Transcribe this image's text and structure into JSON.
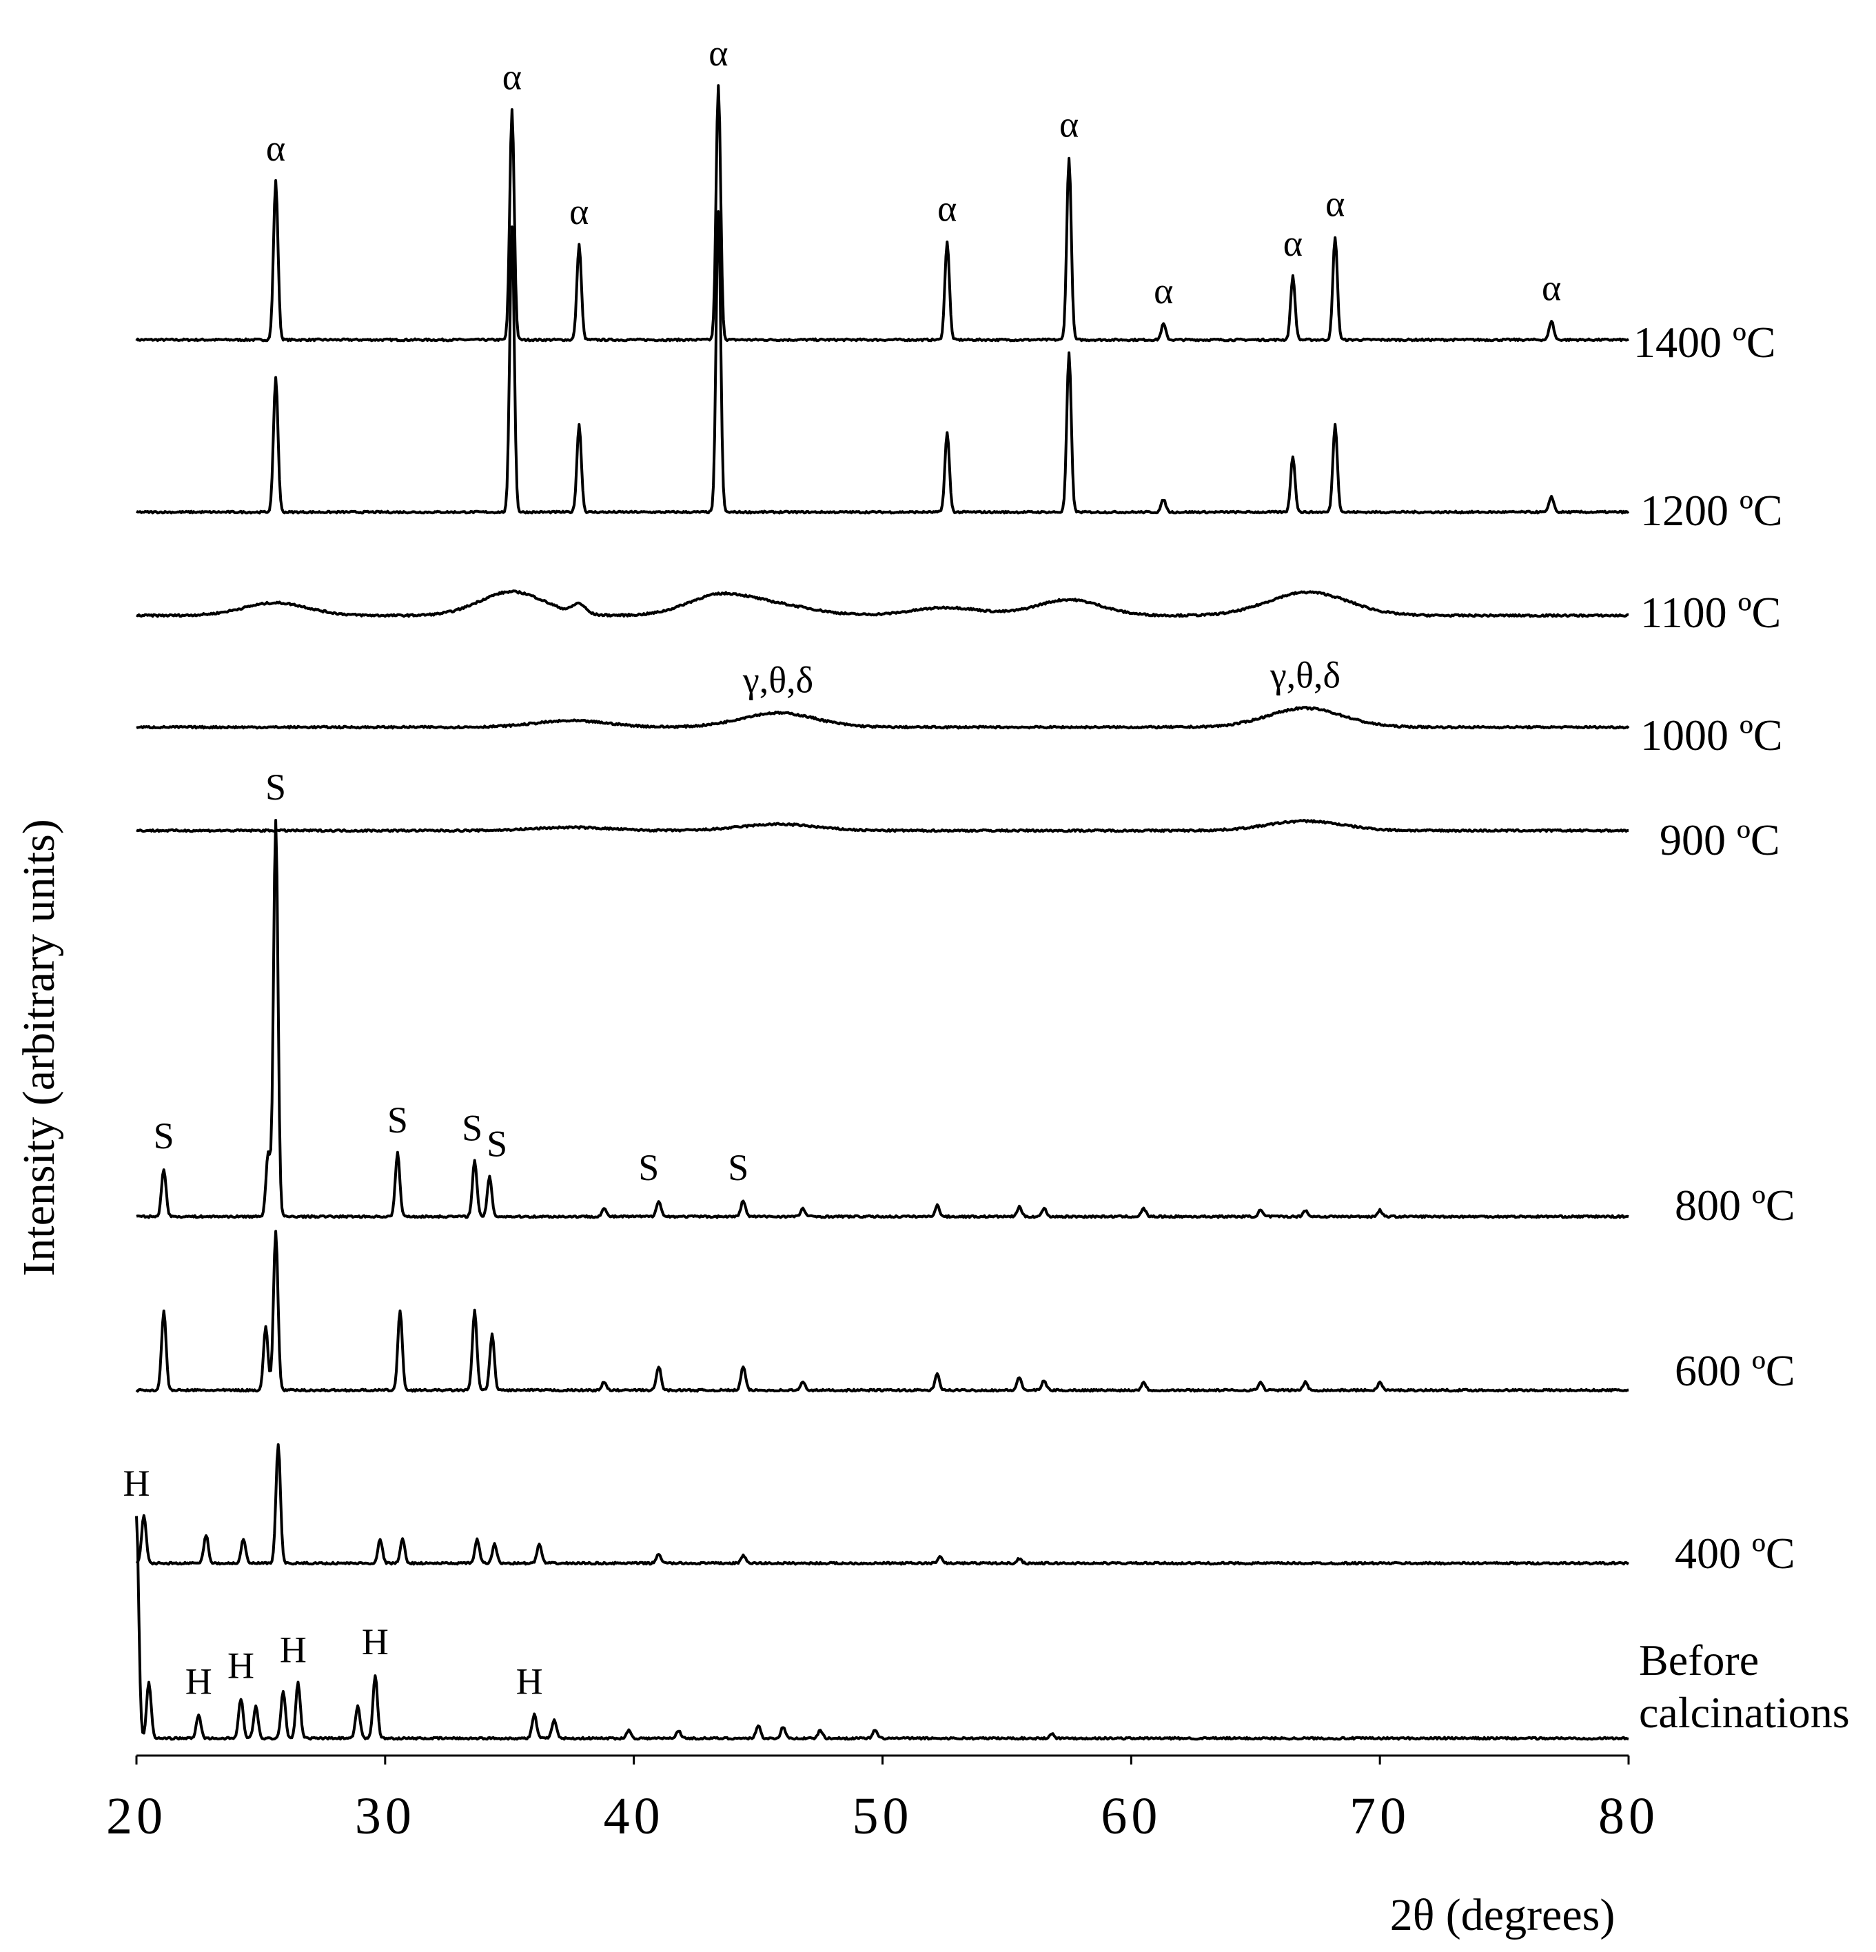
{
  "chart_data": {
    "type": "line",
    "title": "",
    "xlabel": "2θ (degrees)",
    "ylabel": "Intensity  (arbitrary units)",
    "xlim": [
      20,
      80
    ],
    "x_ticks": [
      20,
      30,
      40,
      50,
      60,
      70,
      80
    ],
    "x_tick_labels": [
      "20",
      "30",
      "40",
      "50",
      "60",
      "70",
      "80"
    ],
    "grid": false,
    "series": [
      {
        "name": "1400 ºC",
        "label_lines": [
          "1400 ºC"
        ],
        "peaks": [
          [
            25.6,
            1.0
          ],
          [
            35.1,
            1.45
          ],
          [
            37.8,
            0.6
          ],
          [
            43.4,
            1.6
          ],
          [
            52.6,
            0.62
          ],
          [
            57.5,
            1.15
          ],
          [
            61.3,
            0.1
          ],
          [
            66.5,
            0.4
          ],
          [
            68.2,
            0.65
          ],
          [
            76.9,
            0.12
          ]
        ],
        "peak_labels": [
          {
            "x": 25.6,
            "text": "α"
          },
          {
            "x": 35.1,
            "text": "α"
          },
          {
            "x": 37.8,
            "text": "α"
          },
          {
            "x": 43.4,
            "text": "α"
          },
          {
            "x": 52.6,
            "text": "α"
          },
          {
            "x": 57.5,
            "text": "α"
          },
          {
            "x": 61.3,
            "text": "α"
          },
          {
            "x": 66.5,
            "text": "α"
          },
          {
            "x": 68.2,
            "text": "α"
          },
          {
            "x": 76.9,
            "text": "α"
          }
        ]
      },
      {
        "name": "1200 ºC",
        "label_lines": [
          "1200 ºC"
        ],
        "peaks": [
          [
            25.6,
            0.85
          ],
          [
            35.1,
            1.8
          ],
          [
            37.8,
            0.55
          ],
          [
            43.4,
            1.9
          ],
          [
            52.6,
            0.5
          ],
          [
            57.5,
            1.0
          ],
          [
            61.3,
            0.08
          ],
          [
            66.5,
            0.35
          ],
          [
            68.2,
            0.55
          ],
          [
            76.9,
            0.1
          ]
        ],
        "peak_labels": []
      },
      {
        "name": "1100 ºC",
        "label_lines": [
          "1100 ºC"
        ],
        "peaks": [
          [
            25.6,
            0.08
          ],
          [
            35.1,
            0.15
          ],
          [
            37.8,
            0.06
          ],
          [
            43.4,
            0.12
          ],
          [
            45.8,
            0.06
          ],
          [
            52.6,
            0.05
          ],
          [
            57.5,
            0.1
          ],
          [
            66.8,
            0.12
          ],
          [
            68.2,
            0.04
          ]
        ],
        "peak_labels": []
      },
      {
        "name": "1000 ºC",
        "label_lines": [
          "1000 ºC"
        ],
        "peaks": [
          [
            37.5,
            0.04
          ],
          [
            45.8,
            0.09
          ],
          [
            67.0,
            0.12
          ]
        ],
        "peak_labels": [
          {
            "x": 45.8,
            "text": "γ,θ,δ"
          },
          {
            "x": 67.0,
            "text": "γ,θ,δ"
          }
        ]
      },
      {
        "name": "900 ºC",
        "label_lines": [
          "900 ºC"
        ],
        "peaks": [
          [
            37.5,
            0.02
          ],
          [
            45.8,
            0.04
          ],
          [
            67.0,
            0.06
          ]
        ],
        "peak_labels": []
      },
      {
        "name": "800 ºC",
        "label_lines": [
          "800 ºC"
        ],
        "peaks": [
          [
            21.1,
            0.3
          ],
          [
            25.3,
            0.4
          ],
          [
            25.6,
            2.5
          ],
          [
            30.5,
            0.4
          ],
          [
            33.6,
            0.35
          ],
          [
            34.2,
            0.25
          ],
          [
            38.8,
            0.05
          ],
          [
            41.0,
            0.1
          ],
          [
            44.4,
            0.1
          ],
          [
            46.8,
            0.05
          ],
          [
            52.2,
            0.07
          ],
          [
            55.5,
            0.06
          ],
          [
            56.5,
            0.05
          ],
          [
            60.5,
            0.05
          ],
          [
            65.2,
            0.04
          ],
          [
            67.0,
            0.04
          ],
          [
            70.0,
            0.04
          ]
        ],
        "peak_labels": [
          {
            "x": 21.1,
            "text": "S"
          },
          {
            "x": 25.6,
            "text": "S"
          },
          {
            "x": 30.5,
            "text": "S"
          },
          {
            "x": 33.5,
            "text": "S"
          },
          {
            "x": 34.5,
            "text": "S"
          },
          {
            "x": 40.6,
            "text": "S"
          },
          {
            "x": 44.2,
            "text": "S"
          }
        ]
      },
      {
        "name": "600 ºC",
        "label_lines": [
          "600 ºC"
        ],
        "peaks": [
          [
            21.1,
            0.5
          ],
          [
            25.2,
            0.4
          ],
          [
            25.6,
            1.0
          ],
          [
            30.6,
            0.5
          ],
          [
            33.6,
            0.5
          ],
          [
            34.3,
            0.35
          ],
          [
            38.8,
            0.05
          ],
          [
            41.0,
            0.15
          ],
          [
            44.4,
            0.15
          ],
          [
            46.8,
            0.05
          ],
          [
            52.2,
            0.1
          ],
          [
            55.5,
            0.08
          ],
          [
            56.5,
            0.06
          ],
          [
            60.5,
            0.05
          ],
          [
            65.2,
            0.05
          ],
          [
            67.0,
            0.05
          ],
          [
            70.0,
            0.05
          ]
        ],
        "peak_labels": []
      },
      {
        "name": "400 ºC",
        "label_lines": [
          "400 ºC"
        ],
        "peaks": [
          [
            20.3,
            0.3
          ],
          [
            22.8,
            0.18
          ],
          [
            24.3,
            0.15
          ],
          [
            25.7,
            0.75
          ],
          [
            29.8,
            0.15
          ],
          [
            30.7,
            0.15
          ],
          [
            33.7,
            0.15
          ],
          [
            34.4,
            0.12
          ],
          [
            36.2,
            0.12
          ],
          [
            41.0,
            0.06
          ],
          [
            44.4,
            0.05
          ],
          [
            52.3,
            0.04
          ],
          [
            55.5,
            0.03
          ]
        ],
        "peak_labels": []
      },
      {
        "name": "Before calcinations",
        "label_lines": [
          "Before",
          "calcinations"
        ],
        "peaks": [
          [
            20.0,
            1.4
          ],
          [
            20.5,
            0.35
          ],
          [
            22.5,
            0.15
          ],
          [
            24.2,
            0.25
          ],
          [
            24.8,
            0.2
          ],
          [
            25.9,
            0.3
          ],
          [
            26.5,
            0.35
          ],
          [
            28.9,
            0.2
          ],
          [
            29.6,
            0.4
          ],
          [
            36.0,
            0.15
          ],
          [
            36.8,
            0.12
          ],
          [
            39.8,
            0.05
          ],
          [
            41.8,
            0.05
          ],
          [
            45.0,
            0.08
          ],
          [
            46.0,
            0.07
          ],
          [
            47.5,
            0.05
          ],
          [
            49.7,
            0.05
          ],
          [
            56.8,
            0.03
          ]
        ],
        "peak_labels": [
          {
            "x": 20.0,
            "text": "H"
          },
          {
            "x": 22.5,
            "text": "H"
          },
          {
            "x": 24.2,
            "text": "H"
          },
          {
            "x": 26.3,
            "text": "H"
          },
          {
            "x": 29.6,
            "text": "H"
          },
          {
            "x": 35.8,
            "text": "H"
          }
        ]
      }
    ]
  }
}
